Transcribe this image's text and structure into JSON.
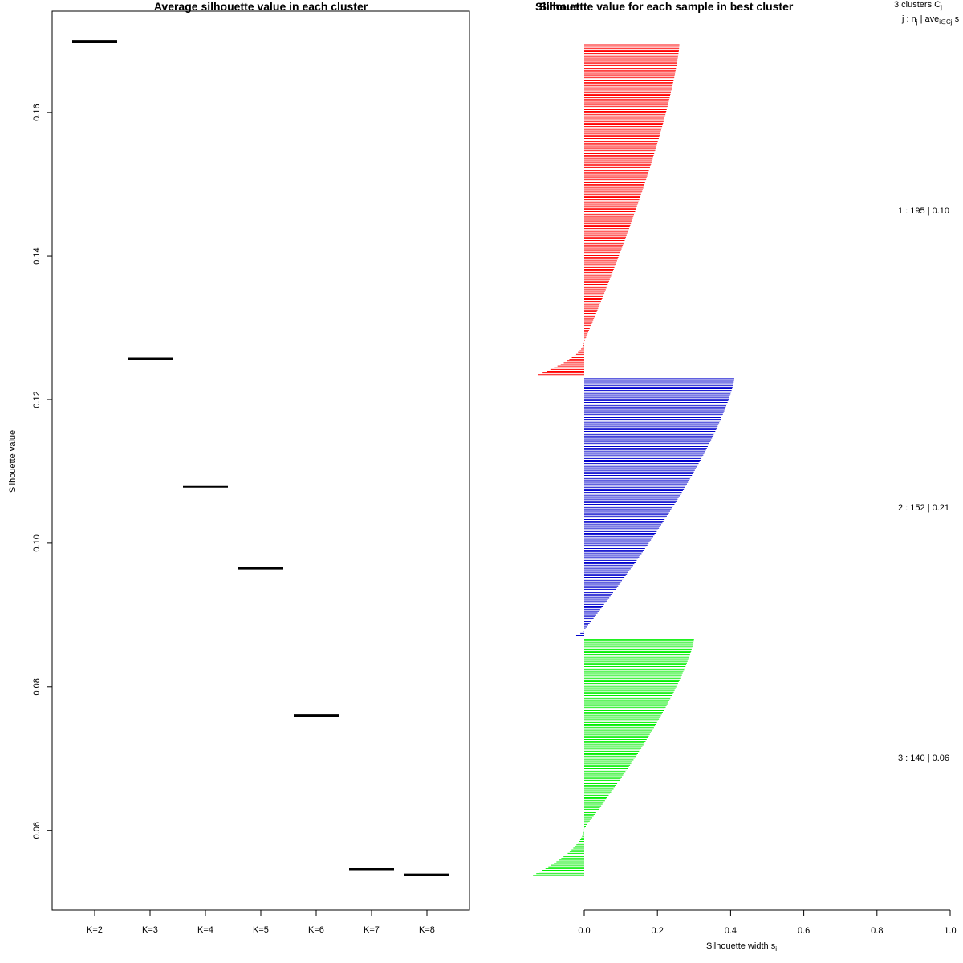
{
  "chart_data": [
    {
      "type": "scatter",
      "title": "Average silhouette value in each cluster",
      "xlabel": "",
      "ylabel": "Silhouette value",
      "categories": [
        "K=2",
        "K=3",
        "K=4",
        "K=5",
        "K=6",
        "K=7",
        "K=8"
      ],
      "values": [
        0.1699,
        0.1257,
        0.1079,
        0.0965,
        0.076,
        0.0546,
        0.0538
      ],
      "ylim": [
        0.0489,
        0.1741
      ],
      "yticks": [
        0.06,
        0.08,
        0.1,
        0.12,
        0.14,
        0.16
      ],
      "ytick_labels": [
        "0.06",
        "0.08",
        "0.10",
        "0.12",
        "0.14",
        "0.16"
      ],
      "marker": "horizontal segment",
      "color": "#000000"
    },
    {
      "type": "bar",
      "orientation": "horizontal",
      "title": "Silhouette value for each sample in best cluster",
      "overlap_label": "Silhouet",
      "xlabel": "Silhouette width s",
      "xlabel_subscript": "i",
      "xlim": [
        0.0,
        1.0
      ],
      "xticks": [
        0.0,
        0.2,
        0.4,
        0.6,
        0.8,
        1.0
      ],
      "xtick_labels": [
        "0.0",
        "0.2",
        "0.4",
        "0.6",
        "0.8",
        "1.0"
      ],
      "legend": {
        "header_line1": "3  clusters  C",
        "header_line1_sub": "j",
        "header_line2": "j :  n",
        "header_line2_sub": "j",
        "header_line2_rest": " | ave",
        "header_line2_sub2": "i∈Cj",
        "header_line2_tail": "  s"
      },
      "series": [
        {
          "name": "1",
          "n": 195,
          "size_label": "1 :   195  |  0.10",
          "color": "#ff0000",
          "max": 0.26,
          "min": -0.125,
          "positive_fraction": 0.9,
          "sorted_profile": "descending"
        },
        {
          "name": "2",
          "n": 152,
          "size_label": "2 :   152  |  0.21",
          "color": "#0000cc",
          "max": 0.41,
          "min": -0.022,
          "positive_fraction": 0.98,
          "sorted_profile": "descending"
        },
        {
          "name": "3",
          "n": 140,
          "size_label": "3 :   140  |  0.06",
          "color": "#00ee00",
          "max": 0.3,
          "min": -0.14,
          "positive_fraction": 0.8,
          "sorted_profile": "descending"
        }
      ]
    }
  ]
}
